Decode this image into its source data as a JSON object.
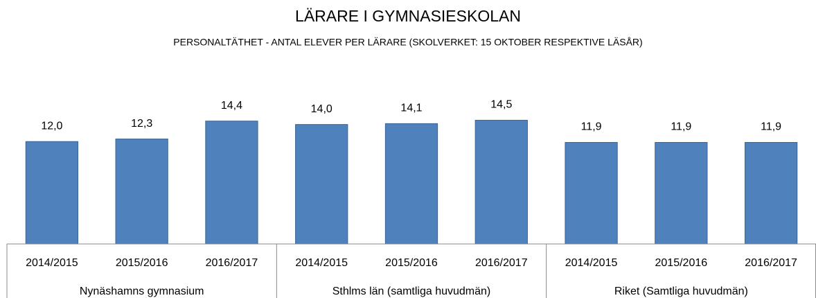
{
  "chart_data": {
    "type": "bar",
    "title": "LÄRARE I GYMNASIESKOLAN",
    "subtitle": "PERSONALTÄTHET - ANTAL ELEVER PER LÄRARE (SKOLVERKET: 15 OKTOBER RESPEKTIVE LÄSÅR)",
    "categories": [
      "2014/2015",
      "2015/2016",
      "2016/2017",
      "2014/2015",
      "2015/2016",
      "2016/2017",
      "2014/2015",
      "2015/2016",
      "2016/2017"
    ],
    "group_labels": [
      "Nynäshamns gymnasium",
      "Sthlms län (samtliga huvudmän)",
      "Riket (Samtliga huvudmän)"
    ],
    "values": [
      12.0,
      12.3,
      14.4,
      14.0,
      14.1,
      14.5,
      11.9,
      11.9,
      11.9
    ],
    "value_labels": [
      "12,0",
      "12,3",
      "14,4",
      "14,0",
      "14,1",
      "14,5",
      "11,9",
      "11,9",
      "11,9"
    ],
    "color": "#4f81bd",
    "ylim": [
      0,
      16
    ]
  }
}
